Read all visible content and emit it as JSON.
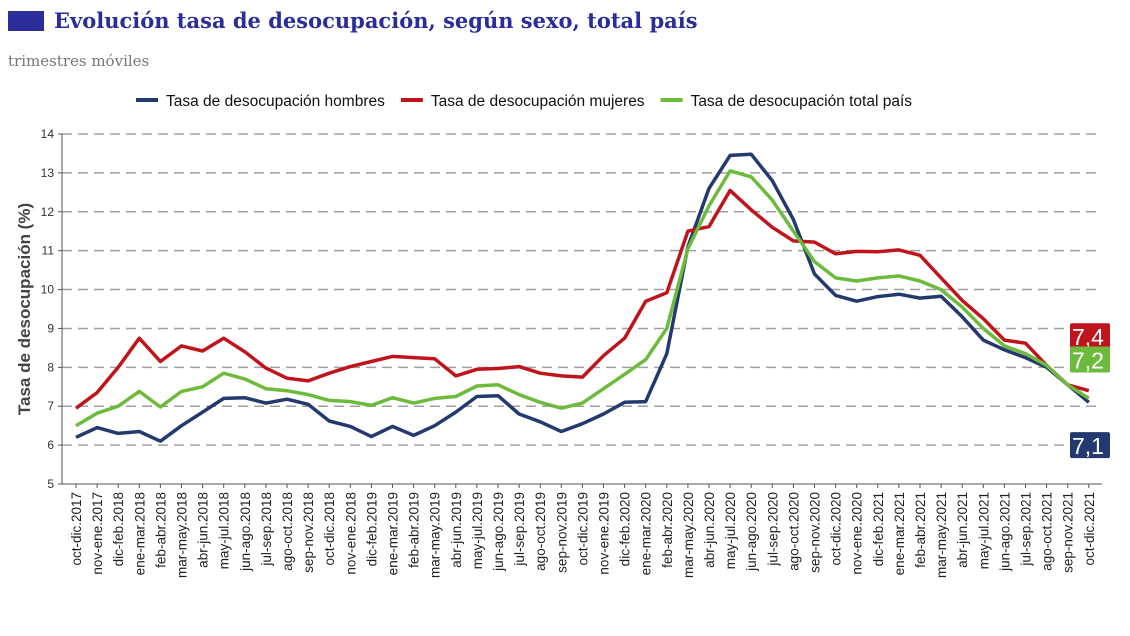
{
  "header": {
    "title": "Evolución tasa de desocupación, según sexo, total país",
    "subtitle": "trimestres móviles",
    "accent": "#2b2d9b"
  },
  "chart_data": {
    "type": "line",
    "title": "Evolución tasa de desocupación, según sexo, total país",
    "subtitle": "trimestres móviles",
    "xlabel": "",
    "ylabel": "Tasa de desocupación (%)",
    "ylim": [
      5,
      14
    ],
    "yticks": [
      5,
      6,
      7,
      8,
      9,
      10,
      11,
      12,
      13,
      14
    ],
    "grid": "horizontal dashed",
    "legend": "top",
    "categories": [
      "oct-dic.2017",
      "nov-ene.2017",
      "dic-feb.2018",
      "ene-mar.2018",
      "feb-abr.2018",
      "mar-may.2018",
      "abr-jun.2018",
      "may-jul.2018",
      "jun-ago.2018",
      "jul-sep.2018",
      "ago-oct.2018",
      "sep-nov.2018",
      "oct-dic.2018",
      "nov-ene.2018",
      "dic-feb.2019",
      "ene-mar.2019",
      "feb-abr.2019",
      "mar-may.2019",
      "abr-jun.2019",
      "may-jul.2019",
      "jun-ago.2019",
      "jul-sep.2019",
      "ago-oct.2019",
      "sep-nov.2019",
      "oct-dic.2019",
      "nov-ene.2019",
      "dic-feb.2020",
      "ene-mar.2020",
      "feb-abr.2020",
      "mar-may.2020",
      "abr-jun.2020",
      "may-jul.2020",
      "jun-ago.2020",
      "jul-sep.2020",
      "ago-oct.2020",
      "sep-nov.2020",
      "oct-dic.2020",
      "nov-ene.2020",
      "dic-feb.2021",
      "ene-mar.2021",
      "feb-abr.2021",
      "mar-may.2021",
      "abr-jun.2021",
      "may-jul.2021",
      "jun-ago.2021",
      "jul-sep.2021",
      "ago-oct.2021",
      "sep-nov.2021",
      "oct-dic.2021"
    ],
    "series": [
      {
        "name": "Tasa de desocupación hombres",
        "color": "#233a6e",
        "end_label": "7,1",
        "values": [
          6.2,
          6.45,
          6.3,
          6.35,
          6.1,
          6.5,
          6.85,
          7.2,
          7.22,
          7.08,
          7.18,
          7.05,
          6.62,
          6.48,
          6.22,
          6.48,
          6.25,
          6.5,
          6.85,
          7.25,
          7.27,
          6.8,
          6.6,
          6.35,
          6.55,
          6.8,
          7.1,
          7.12,
          8.35,
          11.1,
          12.6,
          13.45,
          13.48,
          12.8,
          11.8,
          10.4,
          9.85,
          9.7,
          9.82,
          9.88,
          9.78,
          9.83,
          9.3,
          8.7,
          8.45,
          8.25,
          8.0,
          7.55,
          7.1
        ]
      },
      {
        "name": "Tasa de desocupación mujeres",
        "color": "#c0141c",
        "end_label": "7,4",
        "values": [
          6.95,
          7.35,
          8.0,
          8.75,
          8.15,
          8.55,
          8.42,
          8.75,
          8.4,
          7.98,
          7.72,
          7.65,
          7.85,
          8.02,
          8.15,
          8.28,
          8.25,
          8.22,
          7.78,
          7.95,
          7.97,
          8.02,
          7.85,
          7.78,
          7.75,
          8.3,
          8.75,
          9.7,
          9.92,
          11.5,
          11.62,
          12.55,
          12.05,
          11.6,
          11.25,
          11.22,
          10.92,
          10.98,
          10.97,
          11.02,
          10.88,
          10.3,
          9.72,
          9.25,
          8.7,
          8.62,
          8.05,
          7.55,
          7.4
        ]
      },
      {
        "name": "Tasa de desocupación total país",
        "color": "#6cbb3c",
        "end_label": "7,2",
        "values": [
          6.5,
          6.82,
          7.0,
          7.38,
          6.98,
          7.38,
          7.5,
          7.85,
          7.7,
          7.45,
          7.4,
          7.3,
          7.15,
          7.12,
          7.02,
          7.22,
          7.08,
          7.2,
          7.25,
          7.52,
          7.55,
          7.3,
          7.1,
          6.95,
          7.08,
          7.45,
          7.82,
          8.2,
          9.0,
          11.05,
          12.15,
          13.05,
          12.9,
          12.3,
          11.5,
          10.72,
          10.3,
          10.22,
          10.3,
          10.35,
          10.22,
          10.0,
          9.55,
          9.0,
          8.55,
          8.35,
          8.05,
          7.55,
          7.2
        ]
      }
    ]
  }
}
